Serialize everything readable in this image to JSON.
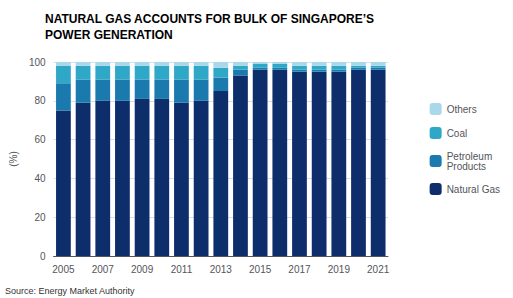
{
  "chart_data": {
    "type": "bar",
    "title": "NATURAL GAS ACCOUNTS FOR BULK OF SINGAPORE’S\nPOWER GENERATION",
    "ylabel": "(%)",
    "annotations": [
      "Source: Energy Market Authority"
    ],
    "categories": [
      "2005",
      null,
      "2007",
      null,
      "2009",
      null,
      "2011",
      null,
      "2013",
      null,
      "2015",
      null,
      "2017",
      null,
      "2019",
      null,
      "2021"
    ],
    "series": [
      {
        "name": "Natural Gas",
        "color": "#0d2d6b",
        "values": [
          75,
          79,
          80,
          80,
          81,
          81,
          79,
          80,
          85,
          93,
          96,
          96,
          95,
          95,
          95,
          96,
          96
        ]
      },
      {
        "name": "Petroleum\nProducts",
        "color": "#1a7aad",
        "values": [
          14,
          12,
          11,
          11,
          10,
          10,
          12,
          11,
          7,
          3,
          1,
          1,
          1,
          1,
          1,
          1,
          1
        ]
      },
      {
        "name": "Coal",
        "color": "#2fa8c8",
        "values": [
          9,
          7,
          7,
          7,
          7,
          7,
          7,
          7,
          5,
          2,
          2,
          2,
          2,
          2,
          2,
          1,
          1
        ]
      },
      {
        "name": "Others",
        "color": "#a8d8ea",
        "values": [
          2,
          2,
          2,
          2,
          2,
          2,
          2,
          2,
          3,
          2,
          1,
          1,
          2,
          2,
          2,
          2,
          2
        ]
      }
    ],
    "stacked": true,
    "ylim": [
      0,
      100
    ],
    "yticks": [
      0,
      20,
      40,
      60,
      80,
      100
    ],
    "grid": true,
    "legend": "right"
  }
}
